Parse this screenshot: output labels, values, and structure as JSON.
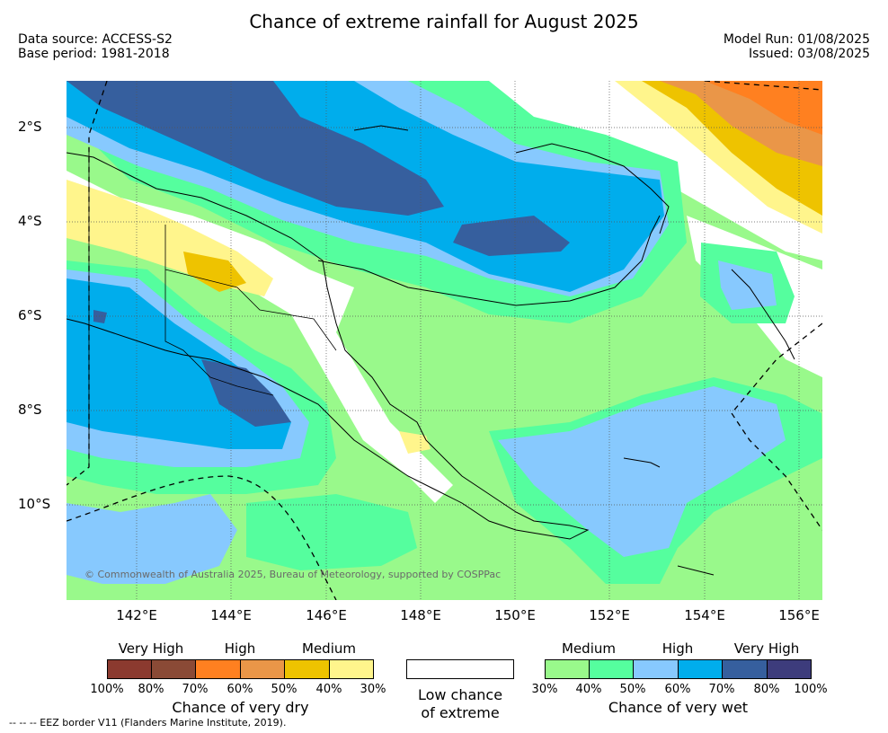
{
  "title": "Chance of extreme rainfall for August 2025",
  "meta": {
    "source": "Data source: ACCESS-S2",
    "base_period": "Base period: 1981-2018",
    "model_run": "Model Run: 01/08/2025",
    "issued": "Issued: 03/08/2025"
  },
  "map": {
    "lat_labels": [
      "2°S",
      "4°S",
      "6°S",
      "8°S",
      "10°S"
    ],
    "lon_labels": [
      "142°E",
      "144°E",
      "146°E",
      "148°E",
      "150°E",
      "152°E",
      "154°E",
      "156°E"
    ],
    "copyright": "© Commonwealth of Australia 2025, Bureau of Meteorology, supported by COSPPac"
  },
  "legend": {
    "dry": {
      "categories": [
        "Very High",
        "High",
        "Medium"
      ],
      "percents": [
        "100%",
        "80%",
        "70%",
        "60%",
        "50%",
        "40%",
        "30%"
      ],
      "colors": [
        "#8b3a2f",
        "#8a4a36",
        "#ff8020",
        "#ea9648",
        "#eec300",
        "#fff58c"
      ],
      "title": "Chance of very dry"
    },
    "neutral": {
      "title_line1": "Low chance",
      "title_line2": "of extreme"
    },
    "wet": {
      "categories": [
        "Medium",
        "High",
        "Very High"
      ],
      "percents": [
        "30%",
        "40%",
        "50%",
        "60%",
        "70%",
        "80%",
        "100%"
      ],
      "colors": [
        "#99f98b",
        "#55fe9e",
        "#87c9fe",
        "#00adec",
        "#365f9e",
        "#3d3c7c"
      ],
      "title": "Chance of very wet"
    }
  },
  "eez_note": "-- -- -- EEZ border V11 (Flanders Marine Institute, 2019)."
}
